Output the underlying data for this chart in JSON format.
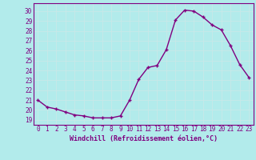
{
  "x": [
    0,
    1,
    2,
    3,
    4,
    5,
    6,
    7,
    8,
    9,
    10,
    11,
    12,
    13,
    14,
    15,
    16,
    17,
    18,
    19,
    20,
    21,
    22,
    23
  ],
  "y": [
    21.0,
    20.3,
    20.1,
    19.8,
    19.5,
    19.4,
    19.2,
    19.2,
    19.2,
    19.4,
    21.0,
    23.1,
    24.3,
    24.5,
    26.1,
    29.1,
    30.1,
    30.0,
    29.4,
    28.6,
    28.1,
    26.5,
    24.6,
    23.3
  ],
  "line_color": "#800080",
  "marker": "+",
  "marker_size": 3.5,
  "marker_lw": 1.0,
  "xlabel": "Windchill (Refroidissement éolien,°C)",
  "ylabel_ticks": [
    19,
    20,
    21,
    22,
    23,
    24,
    25,
    26,
    27,
    28,
    29,
    30
  ],
  "ylim": [
    18.5,
    30.8
  ],
  "xlim": [
    -0.5,
    23.5
  ],
  "bg_color": "#b2ebeb",
  "grid_color": "#c8e8e8",
  "tick_color": "#800080",
  "label_color": "#800080",
  "xlabel_fontsize": 6.0,
  "tick_fontsize": 5.5,
  "line_width": 1.0
}
